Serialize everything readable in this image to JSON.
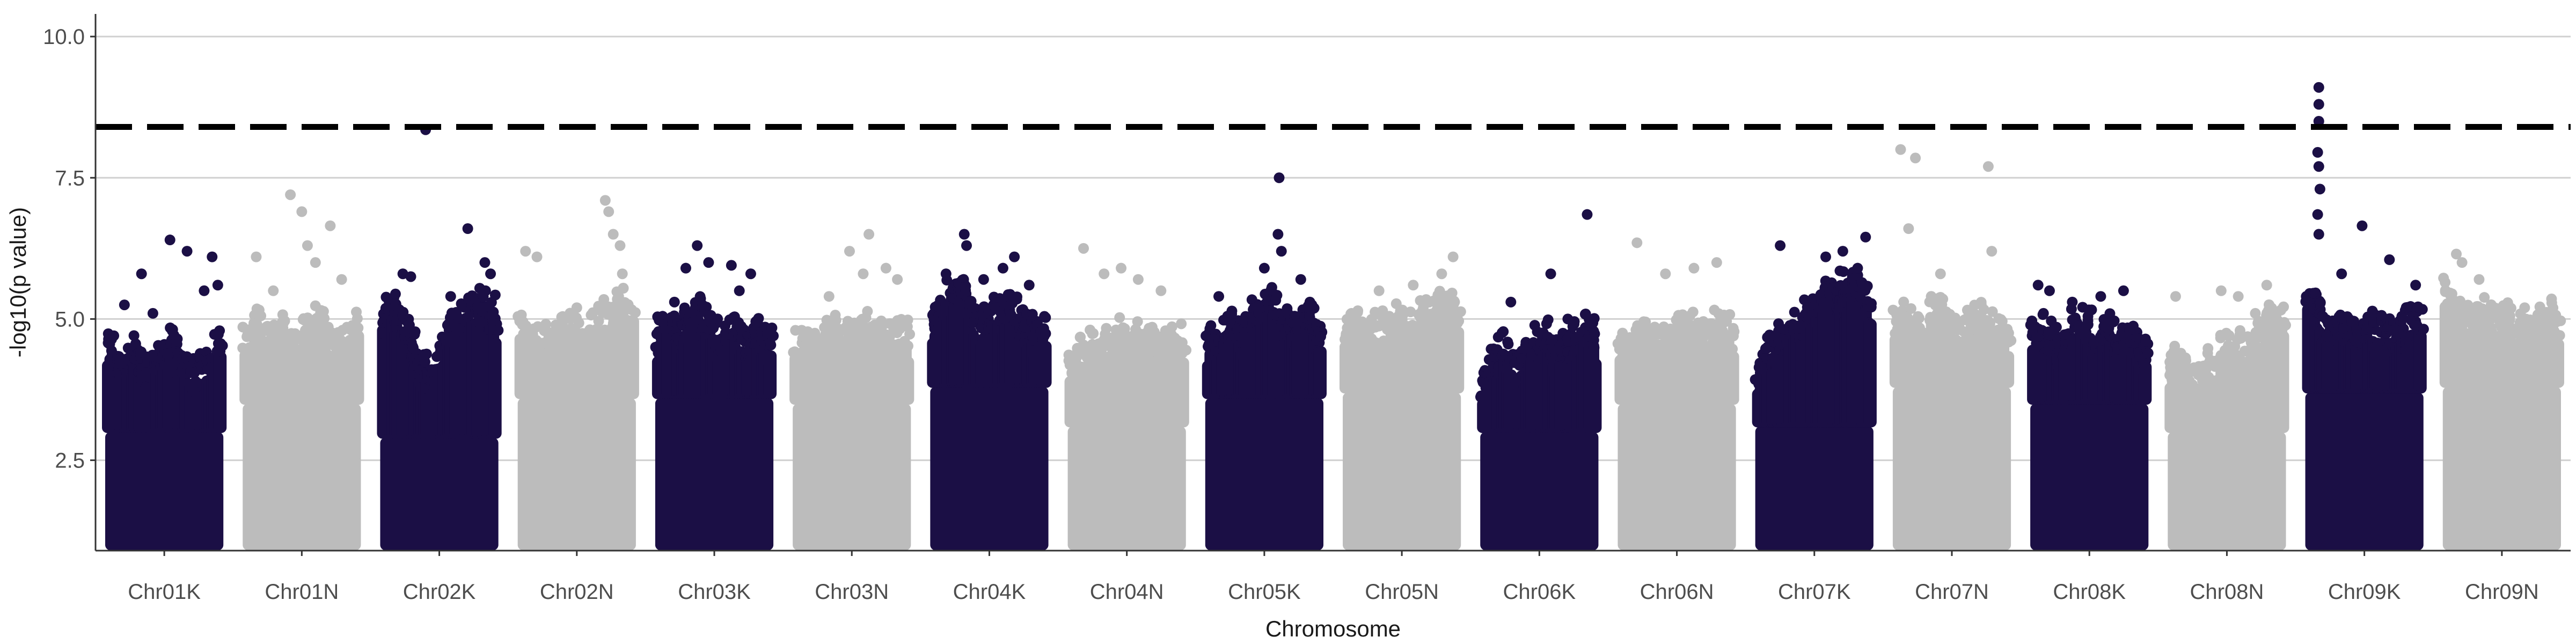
{
  "chart_data": {
    "type": "scatter",
    "title": "",
    "xlabel": "Chromosome",
    "ylabel": "-log10(p value)",
    "ylim": [
      0.9,
      10.4
    ],
    "yticks": [
      2.5,
      5.0,
      7.5,
      10.0
    ],
    "ytick_labels": [
      "2.5",
      "5.0",
      "7.5",
      "10.0"
    ],
    "grid": "horizontal major lines",
    "legend": "none",
    "threshold": 8.4,
    "threshold_style": "dashed",
    "colors": {
      "dark": "#1b0f45",
      "light": "#bcbcbc",
      "threshold": "#000000",
      "grid": "#d0d0d0",
      "axis": "#333333"
    },
    "categories": [
      "Chr01K",
      "Chr01N",
      "Chr02K",
      "Chr02N",
      "Chr03K",
      "Chr03N",
      "Chr04K",
      "Chr04N",
      "Chr05K",
      "Chr05N",
      "Chr06K",
      "Chr06N",
      "Chr07K",
      "Chr07N",
      "Chr08K",
      "Chr08N",
      "Chr09K",
      "Chr09N"
    ],
    "series": [
      {
        "category": "Chr01K",
        "color": "dark",
        "min": 1.0,
        "body_top": [
          4.5,
          4.2,
          4.4,
          4.0,
          4.3,
          4.6,
          4.1,
          3.9,
          4.2,
          4.5
        ],
        "highlights": [
          [
            0.15,
            5.25
          ],
          [
            0.3,
            5.8
          ],
          [
            0.55,
            6.4
          ],
          [
            0.7,
            6.2
          ],
          [
            0.85,
            5.5
          ],
          [
            0.92,
            6.1
          ],
          [
            0.97,
            5.6
          ],
          [
            0.4,
            5.1
          ]
        ]
      },
      {
        "category": "Chr01N",
        "color": "light",
        "min": 1.0,
        "body_top": [
          4.6,
          4.9,
          4.5,
          4.8,
          4.4,
          4.7,
          4.9,
          4.6,
          4.5,
          4.8
        ],
        "highlights": [
          [
            0.1,
            6.1
          ],
          [
            0.4,
            7.2
          ],
          [
            0.5,
            6.9
          ],
          [
            0.55,
            6.3
          ],
          [
            0.62,
            6.0
          ],
          [
            0.75,
            6.65
          ],
          [
            0.85,
            5.7
          ],
          [
            0.25,
            5.5
          ]
        ]
      },
      {
        "category": "Chr02K",
        "color": "dark",
        "min": 1.0,
        "body_top": [
          4.9,
          5.2,
          4.7,
          4.1,
          3.8,
          4.6,
          4.9,
          5.1,
          5.3,
          5.0
        ],
        "highlights": [
          [
            0.38,
            8.35
          ],
          [
            0.18,
            5.8
          ],
          [
            0.25,
            5.75
          ],
          [
            0.75,
            6.6
          ],
          [
            0.9,
            6.0
          ],
          [
            0.95,
            5.8
          ],
          [
            0.6,
            5.4
          ]
        ]
      },
      {
        "category": "Chr02N",
        "color": "light",
        "min": 1.0,
        "body_top": [
          4.8,
          4.6,
          4.5,
          4.7,
          4.9,
          4.6,
          4.8,
          5.0,
          5.2,
          5.1
        ],
        "highlights": [
          [
            0.05,
            6.2
          ],
          [
            0.15,
            6.1
          ],
          [
            0.75,
            7.1
          ],
          [
            0.78,
            6.9
          ],
          [
            0.82,
            6.5
          ],
          [
            0.88,
            6.3
          ],
          [
            0.9,
            5.8
          ],
          [
            0.5,
            5.2
          ]
        ]
      },
      {
        "category": "Chr03K",
        "color": "dark",
        "min": 1.0,
        "body_top": [
          4.6,
          5.0,
          4.7,
          5.2,
          4.9,
          4.6,
          4.8,
          4.5,
          4.7,
          4.6
        ],
        "highlights": [
          [
            0.35,
            6.3
          ],
          [
            0.25,
            5.9
          ],
          [
            0.45,
            6.0
          ],
          [
            0.65,
            5.95
          ],
          [
            0.82,
            5.8
          ],
          [
            0.72,
            5.5
          ],
          [
            0.15,
            5.3
          ]
        ]
      },
      {
        "category": "Chr03N",
        "color": "light",
        "min": 1.0,
        "body_top": [
          4.4,
          4.6,
          4.5,
          4.8,
          4.6,
          4.7,
          4.9,
          4.5,
          4.7,
          4.6
        ],
        "highlights": [
          [
            0.48,
            6.2
          ],
          [
            0.65,
            6.5
          ],
          [
            0.8,
            5.9
          ],
          [
            0.9,
            5.7
          ],
          [
            0.6,
            5.8
          ],
          [
            0.3,
            5.4
          ]
        ]
      },
      {
        "category": "Chr04K",
        "color": "dark",
        "min": 1.0,
        "body_top": [
          4.9,
          5.3,
          5.6,
          5.1,
          4.8,
          5.0,
          5.2,
          4.9,
          4.7,
          4.8
        ],
        "highlights": [
          [
            0.28,
            6.5
          ],
          [
            0.3,
            6.3
          ],
          [
            0.62,
            5.9
          ],
          [
            0.72,
            6.1
          ],
          [
            0.12,
            5.8
          ],
          [
            0.45,
            5.7
          ],
          [
            0.85,
            5.6
          ]
        ]
      },
      {
        "category": "Chr04N",
        "color": "light",
        "min": 1.0,
        "body_top": [
          4.0,
          4.3,
          4.5,
          4.4,
          4.6,
          4.5,
          4.7,
          4.4,
          4.5,
          4.6
        ],
        "highlights": [
          [
            0.12,
            6.25
          ],
          [
            0.3,
            5.8
          ],
          [
            0.45,
            5.9
          ],
          [
            0.6,
            5.7
          ],
          [
            0.8,
            5.5
          ]
        ]
      },
      {
        "category": "Chr05K",
        "color": "dark",
        "min": 1.0,
        "body_top": [
          4.5,
          4.7,
          4.9,
          4.6,
          5.1,
          5.3,
          4.8,
          4.9,
          5.0,
          4.7
        ],
        "highlights": [
          [
            0.63,
            7.5
          ],
          [
            0.62,
            6.5
          ],
          [
            0.65,
            6.2
          ],
          [
            0.5,
            5.9
          ],
          [
            0.1,
            5.4
          ],
          [
            0.82,
            5.7
          ],
          [
            0.9,
            5.3
          ]
        ]
      },
      {
        "category": "Chr05N",
        "color": "light",
        "min": 1.0,
        "body_top": [
          4.7,
          4.9,
          4.6,
          4.8,
          5.0,
          4.7,
          4.9,
          5.1,
          5.2,
          5.0
        ],
        "highlights": [
          [
            0.95,
            6.1
          ],
          [
            0.85,
            5.8
          ],
          [
            0.6,
            5.6
          ],
          [
            0.3,
            5.5
          ]
        ]
      },
      {
        "category": "Chr06K",
        "color": "dark",
        "min": 1.0,
        "body_top": [
          3.9,
          4.2,
          4.4,
          4.1,
          4.5,
          4.6,
          4.3,
          4.5,
          4.7,
          4.6
        ],
        "highlights": [
          [
            0.92,
            6.85
          ],
          [
            0.6,
            5.8
          ],
          [
            0.25,
            5.3
          ],
          [
            0.75,
            5.0
          ]
        ]
      },
      {
        "category": "Chr06N",
        "color": "light",
        "min": 1.0,
        "body_top": [
          4.6,
          4.4,
          4.7,
          4.5,
          4.6,
          4.8,
          4.7,
          4.6,
          4.9,
          4.7
        ],
        "highlights": [
          [
            0.15,
            6.35
          ],
          [
            0.4,
            5.8
          ],
          [
            0.65,
            5.9
          ],
          [
            0.85,
            6.0
          ]
        ]
      },
      {
        "category": "Chr07K",
        "color": "dark",
        "min": 1.0,
        "body_top": [
          4.0,
          4.4,
          4.6,
          4.8,
          5.0,
          5.3,
          5.5,
          5.4,
          5.6,
          5.2
        ],
        "highlights": [
          [
            0.2,
            6.3
          ],
          [
            0.6,
            6.1
          ],
          [
            0.75,
            6.2
          ],
          [
            0.95,
            6.45
          ],
          [
            0.88,
            5.9
          ]
        ]
      },
      {
        "category": "Chr07N",
        "color": "light",
        "min": 1.0,
        "body_top": [
          4.8,
          5.0,
          4.7,
          5.1,
          4.9,
          4.8,
          5.0,
          4.8,
          4.9,
          4.7
        ],
        "highlights": [
          [
            0.05,
            8.0
          ],
          [
            0.18,
            7.85
          ],
          [
            0.12,
            6.6
          ],
          [
            0.82,
            7.7
          ],
          [
            0.85,
            6.2
          ],
          [
            0.4,
            5.8
          ]
        ]
      },
      {
        "category": "Chr08K",
        "color": "dark",
        "min": 1.0,
        "body_top": [
          4.6,
          4.8,
          4.5,
          4.7,
          4.9,
          4.6,
          4.8,
          4.5,
          4.6,
          4.4
        ],
        "highlights": [
          [
            0.05,
            5.6
          ],
          [
            0.15,
            5.5
          ],
          [
            0.6,
            5.4
          ],
          [
            0.8,
            5.5
          ],
          [
            0.35,
            5.3
          ]
        ]
      },
      {
        "category": "Chr08N",
        "color": "light",
        "min": 1.0,
        "body_top": [
          4.2,
          4.0,
          3.9,
          4.1,
          4.3,
          4.5,
          4.4,
          4.8,
          5.0,
          4.9
        ],
        "highlights": [
          [
            0.05,
            5.4
          ],
          [
            0.45,
            5.5
          ],
          [
            0.6,
            5.4
          ],
          [
            0.85,
            5.6
          ],
          [
            0.75,
            5.1
          ]
        ]
      },
      {
        "category": "Chr09K",
        "color": "dark",
        "min": 1.0,
        "body_top": [
          5.3,
          5.0,
          4.7,
          4.9,
          4.6,
          4.8,
          4.9,
          4.7,
          4.8,
          4.9
        ],
        "highlights": [
          [
            0.1,
            9.1
          ],
          [
            0.1,
            8.8
          ],
          [
            0.1,
            8.5
          ],
          [
            0.09,
            7.95
          ],
          [
            0.1,
            7.7
          ],
          [
            0.11,
            7.3
          ],
          [
            0.09,
            6.85
          ],
          [
            0.1,
            6.5
          ],
          [
            0.48,
            6.65
          ],
          [
            0.72,
            6.05
          ],
          [
            0.95,
            5.6
          ],
          [
            0.3,
            5.8
          ]
        ]
      },
      {
        "category": "Chr09N",
        "color": "light",
        "min": 1.0,
        "body_top": [
          5.5,
          5.1,
          4.9,
          5.2,
          4.8,
          4.9,
          4.7,
          4.9,
          5.0,
          4.8
        ],
        "highlights": [
          [
            0.1,
            6.15
          ],
          [
            0.15,
            6.0
          ],
          [
            0.3,
            5.7
          ],
          [
            0.7,
            5.2
          ],
          [
            0.95,
            5.0
          ]
        ]
      }
    ]
  }
}
